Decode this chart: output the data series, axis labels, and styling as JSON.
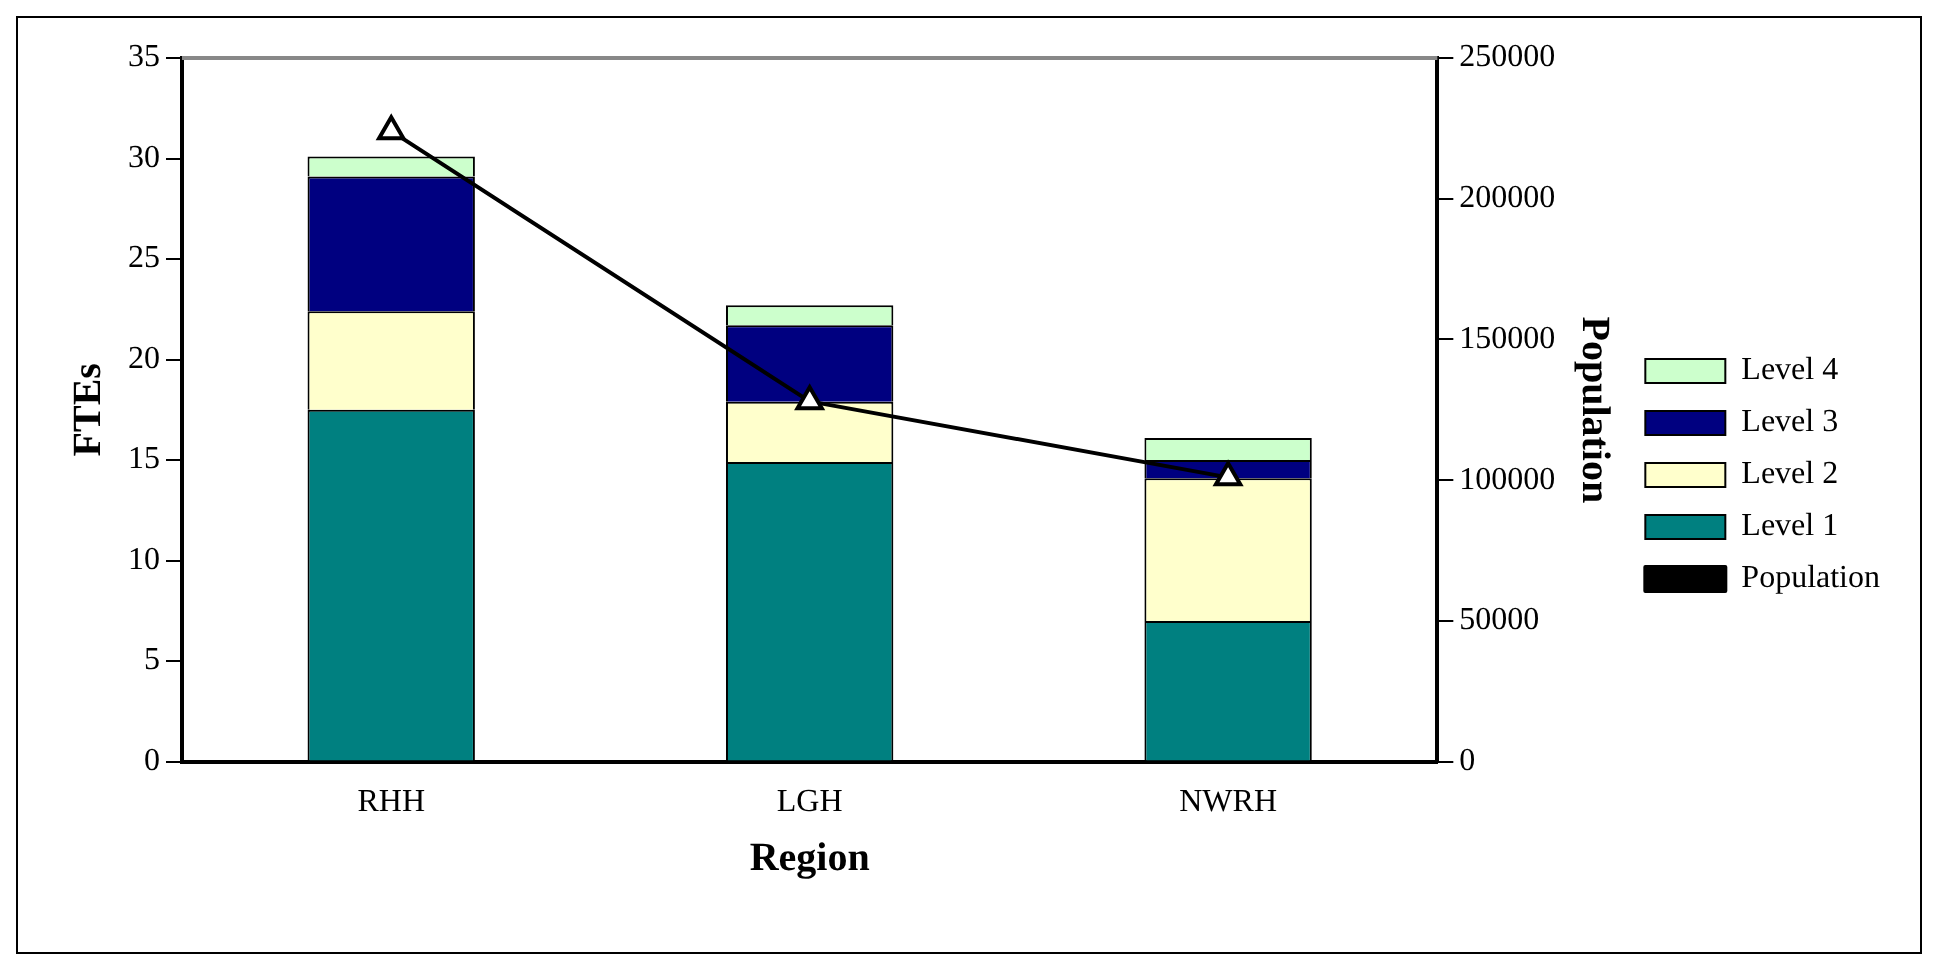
{
  "chart_data": {
    "type": "bar",
    "stacked": true,
    "xlabel": "Region",
    "ylabel": "FTEs",
    "y2label": "Population",
    "categories": [
      "RHH",
      "LGH",
      "NWRH"
    ],
    "series": [
      {
        "name": "Level 1",
        "color": "#008080",
        "values": [
          17.5,
          14.9,
          7.0
        ]
      },
      {
        "name": "Level 2",
        "color": "#ffffcc",
        "values": [
          4.9,
          3.0,
          7.1
        ]
      },
      {
        "name": "Level 3",
        "color": "#000080",
        "values": [
          6.7,
          3.8,
          0.9
        ]
      },
      {
        "name": "Level 4",
        "color": "#ccffcc",
        "values": [
          1.0,
          1.0,
          1.1
        ]
      },
      {
        "name": "Population",
        "type": "line",
        "axis": "y2",
        "color": "#000000",
        "marker": "triangle",
        "values": [
          224000,
          128000,
          101000
        ]
      }
    ],
    "ylim": [
      0,
      35
    ],
    "yticks": [
      0,
      5,
      10,
      15,
      20,
      25,
      30,
      35
    ],
    "y2lim": [
      0,
      250000
    ],
    "y2ticks": [
      0,
      50000,
      100000,
      150000,
      200000,
      250000
    ],
    "grid": false,
    "legend": "right"
  }
}
